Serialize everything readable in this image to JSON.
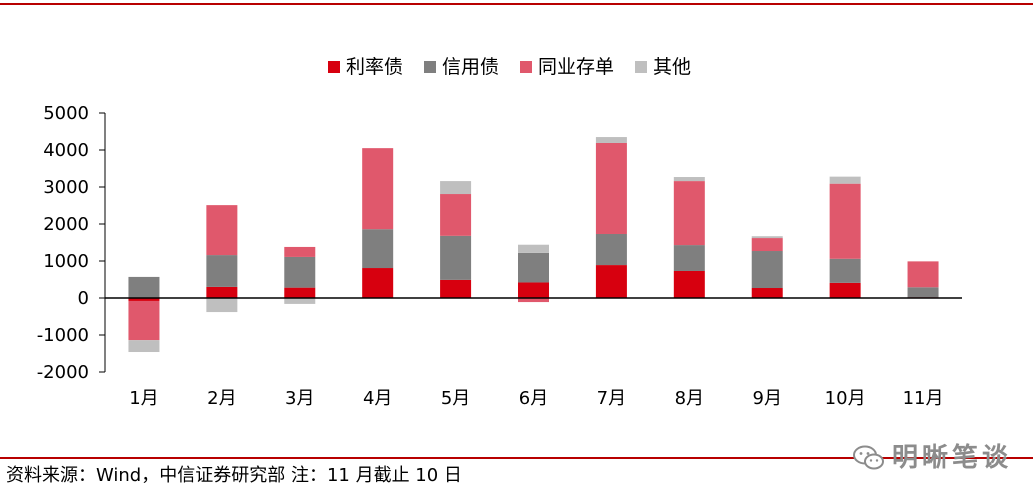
{
  "chart_data": {
    "type": "bar",
    "stacked": true,
    "categories": [
      "1月",
      "2月",
      "3月",
      "4月",
      "5月",
      "6月",
      "7月",
      "8月",
      "9月",
      "10月",
      "11月"
    ],
    "series": [
      {
        "name": "利率债",
        "color": "#D7000F",
        "values": [
          -80,
          300,
          280,
          810,
          490,
          420,
          890,
          730,
          270,
          410,
          20
        ]
      },
      {
        "name": "信用债",
        "color": "#7F7F7F",
        "values": [
          570,
          860,
          830,
          1050,
          1190,
          800,
          840,
          700,
          1000,
          650,
          270
        ]
      },
      {
        "name": "同业存单",
        "color": "#E0586C",
        "values": [
          -1060,
          1350,
          270,
          2190,
          1130,
          -110,
          2460,
          1730,
          350,
          2030,
          700
        ]
      },
      {
        "name": "其他",
        "color": "#BFBFBF",
        "values": [
          -320,
          -380,
          -160,
          0,
          350,
          220,
          160,
          110,
          50,
          190,
          0
        ]
      }
    ],
    "ylim": [
      -2000,
      5000
    ],
    "yticks": [
      5000,
      4000,
      3000,
      2000,
      1000,
      0,
      -1000,
      -2000
    ],
    "grid": false,
    "legend": "top"
  },
  "source_note": "资料来源：Wind，中信证券研究部 注：11 月截止 10 日",
  "watermark": {
    "text": "明晰笔谈",
    "icon": "wechat-icon"
  },
  "rule_color": "#B80000"
}
